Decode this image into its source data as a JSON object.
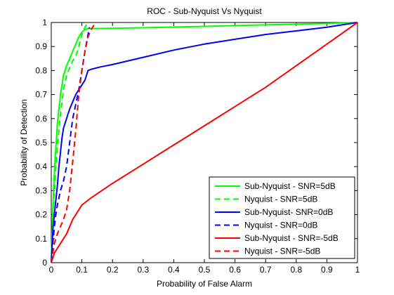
{
  "chart_data": {
    "type": "line",
    "title": "ROC - Sub-Nyquist Vs Nyquist",
    "xlabel": "Probability of False Alarm",
    "ylabel": "Probability of Detection",
    "xlim": [
      0,
      1
    ],
    "ylim": [
      0,
      1
    ],
    "xticks": [
      0,
      0.1,
      0.2,
      0.3,
      0.4,
      0.5,
      0.6,
      0.7,
      0.8,
      0.9,
      1
    ],
    "yticks": [
      0,
      0.1,
      0.2,
      0.3,
      0.4,
      0.5,
      0.6,
      0.7,
      0.8,
      0.9,
      1
    ],
    "xtick_labels": [
      "0",
      "0.1",
      "0.2",
      "0.3",
      "0.4",
      "0.5",
      "0.6",
      "0.7",
      "0.8",
      "0.9",
      "1"
    ],
    "ytick_labels": [
      "0",
      "0.1",
      "0.2",
      "0.3",
      "0.4",
      "0.5",
      "0.6",
      "0.7",
      "0.8",
      "0.9",
      "1"
    ],
    "grid": false,
    "legend_position": "bottom-right",
    "series": [
      {
        "name": "Sub-Nyquist - SNR=5dB",
        "color": "#00ff00",
        "dash": "solid",
        "points": [
          [
            0,
            0
          ],
          [
            0.002,
            0.1
          ],
          [
            0.005,
            0.22
          ],
          [
            0.008,
            0.32
          ],
          [
            0.012,
            0.42
          ],
          [
            0.016,
            0.5
          ],
          [
            0.02,
            0.58
          ],
          [
            0.025,
            0.64
          ],
          [
            0.03,
            0.7
          ],
          [
            0.035,
            0.74
          ],
          [
            0.04,
            0.78
          ],
          [
            0.05,
            0.82
          ],
          [
            0.06,
            0.85
          ],
          [
            0.07,
            0.88
          ],
          [
            0.08,
            0.91
          ],
          [
            0.09,
            0.94
          ],
          [
            0.1,
            0.96
          ],
          [
            0.11,
            0.97
          ],
          [
            0.12,
            0.975
          ],
          [
            0.15,
            0.975
          ],
          [
            0.2,
            0.976
          ],
          [
            0.3,
            0.978
          ],
          [
            0.4,
            0.981
          ],
          [
            0.5,
            0.984
          ],
          [
            0.6,
            0.987
          ],
          [
            0.7,
            0.99
          ],
          [
            0.8,
            0.993
          ],
          [
            0.9,
            0.996
          ],
          [
            1.0,
            1.0
          ]
        ]
      },
      {
        "name": "Nyquist - SNR=5dB",
        "color": "#00ff00",
        "dash": "dashed",
        "points": [
          [
            0,
            0
          ],
          [
            0.003,
            0.12
          ],
          [
            0.006,
            0.22
          ],
          [
            0.01,
            0.3
          ],
          [
            0.015,
            0.4
          ],
          [
            0.02,
            0.48
          ],
          [
            0.025,
            0.55
          ],
          [
            0.03,
            0.62
          ],
          [
            0.035,
            0.67
          ],
          [
            0.04,
            0.72
          ],
          [
            0.05,
            0.78
          ],
          [
            0.06,
            0.81
          ],
          [
            0.07,
            0.84
          ],
          [
            0.08,
            0.86
          ],
          [
            0.09,
            0.9
          ],
          [
            0.1,
            0.95
          ],
          [
            0.11,
            0.98
          ],
          [
            0.115,
            0.99
          ],
          [
            0.12,
            0.985
          ]
        ]
      },
      {
        "name": "Sub-Nyquist- SNR=0dB",
        "color": "#0000ff",
        "dash": "solid",
        "points": [
          [
            0,
            0
          ],
          [
            0.003,
            0.08
          ],
          [
            0.006,
            0.15
          ],
          [
            0.01,
            0.2
          ],
          [
            0.015,
            0.26
          ],
          [
            0.02,
            0.32
          ],
          [
            0.025,
            0.4
          ],
          [
            0.03,
            0.46
          ],
          [
            0.035,
            0.52
          ],
          [
            0.04,
            0.56
          ],
          [
            0.05,
            0.6
          ],
          [
            0.06,
            0.64
          ],
          [
            0.07,
            0.67
          ],
          [
            0.08,
            0.7
          ],
          [
            0.09,
            0.72
          ],
          [
            0.1,
            0.74
          ],
          [
            0.11,
            0.76
          ],
          [
            0.12,
            0.8
          ],
          [
            0.13,
            0.805
          ],
          [
            0.16,
            0.815
          ],
          [
            0.2,
            0.825
          ],
          [
            0.3,
            0.855
          ],
          [
            0.4,
            0.885
          ],
          [
            0.5,
            0.91
          ],
          [
            0.6,
            0.93
          ],
          [
            0.7,
            0.95
          ],
          [
            0.8,
            0.965
          ],
          [
            0.9,
            0.98
          ],
          [
            1.0,
            1.0
          ]
        ]
      },
      {
        "name": "Nyquist - SNR=0dB",
        "color": "#0000ff",
        "dash": "dashed",
        "points": [
          [
            0,
            0
          ],
          [
            0.005,
            0.08
          ],
          [
            0.01,
            0.15
          ],
          [
            0.015,
            0.2
          ],
          [
            0.02,
            0.24
          ],
          [
            0.025,
            0.27
          ],
          [
            0.03,
            0.3
          ],
          [
            0.04,
            0.34
          ],
          [
            0.05,
            0.4
          ],
          [
            0.06,
            0.5
          ],
          [
            0.07,
            0.6
          ],
          [
            0.08,
            0.66
          ],
          [
            0.09,
            0.72
          ],
          [
            0.1,
            0.8
          ],
          [
            0.11,
            0.88
          ],
          [
            0.12,
            0.95
          ],
          [
            0.125,
            0.98
          ]
        ]
      },
      {
        "name": "Sub-Nyquist - SNR=-5dB",
        "color": "#ff0000",
        "dash": "solid",
        "points": [
          [
            0,
            0
          ],
          [
            0.005,
            0.02
          ],
          [
            0.01,
            0.04
          ],
          [
            0.02,
            0.06
          ],
          [
            0.03,
            0.08
          ],
          [
            0.04,
            0.1
          ],
          [
            0.05,
            0.12
          ],
          [
            0.06,
            0.15
          ],
          [
            0.07,
            0.18
          ],
          [
            0.08,
            0.2
          ],
          [
            0.09,
            0.22
          ],
          [
            0.1,
            0.24
          ],
          [
            0.11,
            0.25
          ],
          [
            0.12,
            0.26
          ],
          [
            0.13,
            0.27
          ],
          [
            0.2,
            0.33
          ],
          [
            0.3,
            0.41
          ],
          [
            0.4,
            0.49
          ],
          [
            0.5,
            0.57
          ],
          [
            0.6,
            0.65
          ],
          [
            0.7,
            0.73
          ],
          [
            0.8,
            0.82
          ],
          [
            0.9,
            0.91
          ],
          [
            1.0,
            1.0
          ]
        ]
      },
      {
        "name": "Nyquist - SNR=-5dB",
        "color": "#ff0000",
        "dash": "dashed",
        "points": [
          [
            0,
            0
          ],
          [
            0.005,
            0.04
          ],
          [
            0.01,
            0.08
          ],
          [
            0.015,
            0.1
          ],
          [
            0.02,
            0.12
          ],
          [
            0.03,
            0.15
          ],
          [
            0.04,
            0.18
          ],
          [
            0.05,
            0.22
          ],
          [
            0.06,
            0.3
          ],
          [
            0.065,
            0.36
          ],
          [
            0.07,
            0.42
          ],
          [
            0.08,
            0.55
          ],
          [
            0.09,
            0.7
          ],
          [
            0.1,
            0.8
          ],
          [
            0.11,
            0.88
          ],
          [
            0.12,
            0.94
          ],
          [
            0.13,
            0.97
          ],
          [
            0.14,
            0.99
          ]
        ]
      }
    ]
  }
}
